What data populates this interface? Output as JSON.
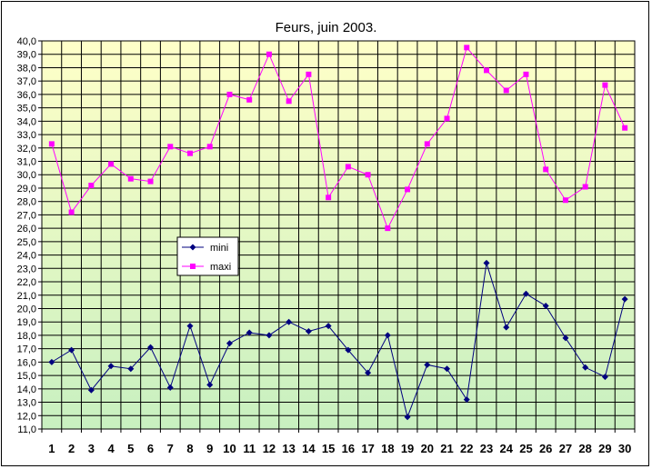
{
  "chart_data": {
    "type": "line",
    "title": "Feurs, juin 2003.",
    "xlabel": "",
    "ylabel": "",
    "x": [
      1,
      2,
      3,
      4,
      5,
      6,
      7,
      8,
      9,
      10,
      11,
      12,
      13,
      14,
      15,
      16,
      17,
      18,
      19,
      20,
      21,
      22,
      23,
      24,
      25,
      26,
      27,
      28,
      29,
      30
    ],
    "ylim": [
      11.0,
      40.0
    ],
    "ytick_step": 1.0,
    "grid": true,
    "legend_position": "left-center",
    "background_gradient": [
      "#ffffc8",
      "#c8f0c0"
    ],
    "series": [
      {
        "name": "mini",
        "color": "#00007f",
        "marker": "diamond",
        "values": [
          16.0,
          16.9,
          13.9,
          15.7,
          15.5,
          17.1,
          14.1,
          18.7,
          14.3,
          17.4,
          18.2,
          18.0,
          19.0,
          18.3,
          18.7,
          16.9,
          15.2,
          18.0,
          11.9,
          15.8,
          15.5,
          13.2,
          23.4,
          18.6,
          21.1,
          20.2,
          17.8,
          15.6,
          14.9,
          20.7
        ]
      },
      {
        "name": "maxi",
        "color": "#ff00ff",
        "marker": "square",
        "values": [
          32.3,
          27.2,
          29.2,
          30.8,
          29.7,
          29.5,
          32.1,
          31.6,
          32.1,
          36.0,
          35.6,
          39.0,
          35.5,
          37.5,
          28.3,
          30.6,
          30.0,
          26.0,
          28.9,
          32.3,
          34.2,
          39.5,
          37.8,
          36.3,
          37.5,
          30.4,
          28.1,
          29.1,
          36.7,
          33.5
        ]
      }
    ]
  }
}
